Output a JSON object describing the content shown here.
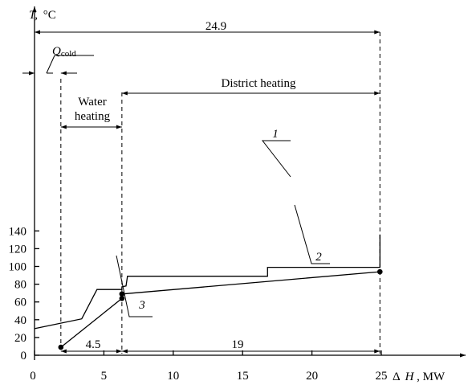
{
  "chart_data": {
    "type": "line",
    "ylabel": "T, °C",
    "xlabel": "Δ H, MW",
    "xlim": [
      0,
      30
    ],
    "ylim": [
      0,
      160
    ],
    "xticks": [
      0,
      5,
      10,
      15,
      20,
      25
    ],
    "yticks": [
      0,
      20,
      40,
      60,
      80,
      100,
      120,
      140
    ],
    "series": [
      {
        "name": "1",
        "points": [
          [
            0,
            30
          ],
          [
            3.4,
            41
          ],
          [
            4.5,
            74
          ],
          [
            6.3,
            74
          ],
          [
            6.3,
            77
          ],
          [
            6.6,
            78
          ],
          [
            6.7,
            89
          ],
          [
            16.8,
            89
          ],
          [
            16.8,
            99
          ],
          [
            24.9,
            99
          ],
          [
            24.9,
            136
          ]
        ]
      },
      {
        "name": "2",
        "points": [
          [
            6.3,
            69
          ],
          [
            24.9,
            94
          ]
        ]
      },
      {
        "name": "3",
        "points": [
          [
            1.9,
            9
          ],
          [
            6.3,
            64
          ]
        ]
      }
    ],
    "markers": [
      [
        1.9,
        9
      ],
      [
        6.3,
        64
      ],
      [
        6.3,
        69
      ],
      [
        24.9,
        94
      ]
    ],
    "curve_labels": [
      {
        "series": "1",
        "text": "1"
      },
      {
        "series": "2",
        "text": "2"
      },
      {
        "series": "3",
        "text": "3"
      }
    ],
    "annotations": [
      {
        "kind": "span",
        "text": "24.9",
        "from": 0,
        "to": 24.9,
        "value": 24.9
      },
      {
        "kind": "span",
        "text": "District heating",
        "from": 6.3,
        "to": 24.9
      },
      {
        "kind": "span",
        "text": "Water heating",
        "from": 1.9,
        "to": 6.3
      },
      {
        "kind": "span",
        "text": "4.5",
        "from": 1.9,
        "to": 6.3,
        "value": 4.5
      },
      {
        "kind": "span",
        "text": "19",
        "from": 6.3,
        "to": 24.9,
        "value": 19
      },
      {
        "kind": "arrows",
        "text": "Q_cold",
        "from": 0,
        "to": 1.9
      }
    ],
    "labels": {
      "ylabel_T": "T,",
      "ylabel_unit": "°C",
      "xlabel_delta": "Δ",
      "xlabel_H": "H",
      "xlabel_unit": ", MW",
      "qcold_Q": "Q",
      "qcold_sub": "cold",
      "water_line1": "Water",
      "water_line2": "heating",
      "district": "District heating",
      "span_total": "24.9",
      "span_water": "4.5",
      "span_district": "19"
    }
  }
}
